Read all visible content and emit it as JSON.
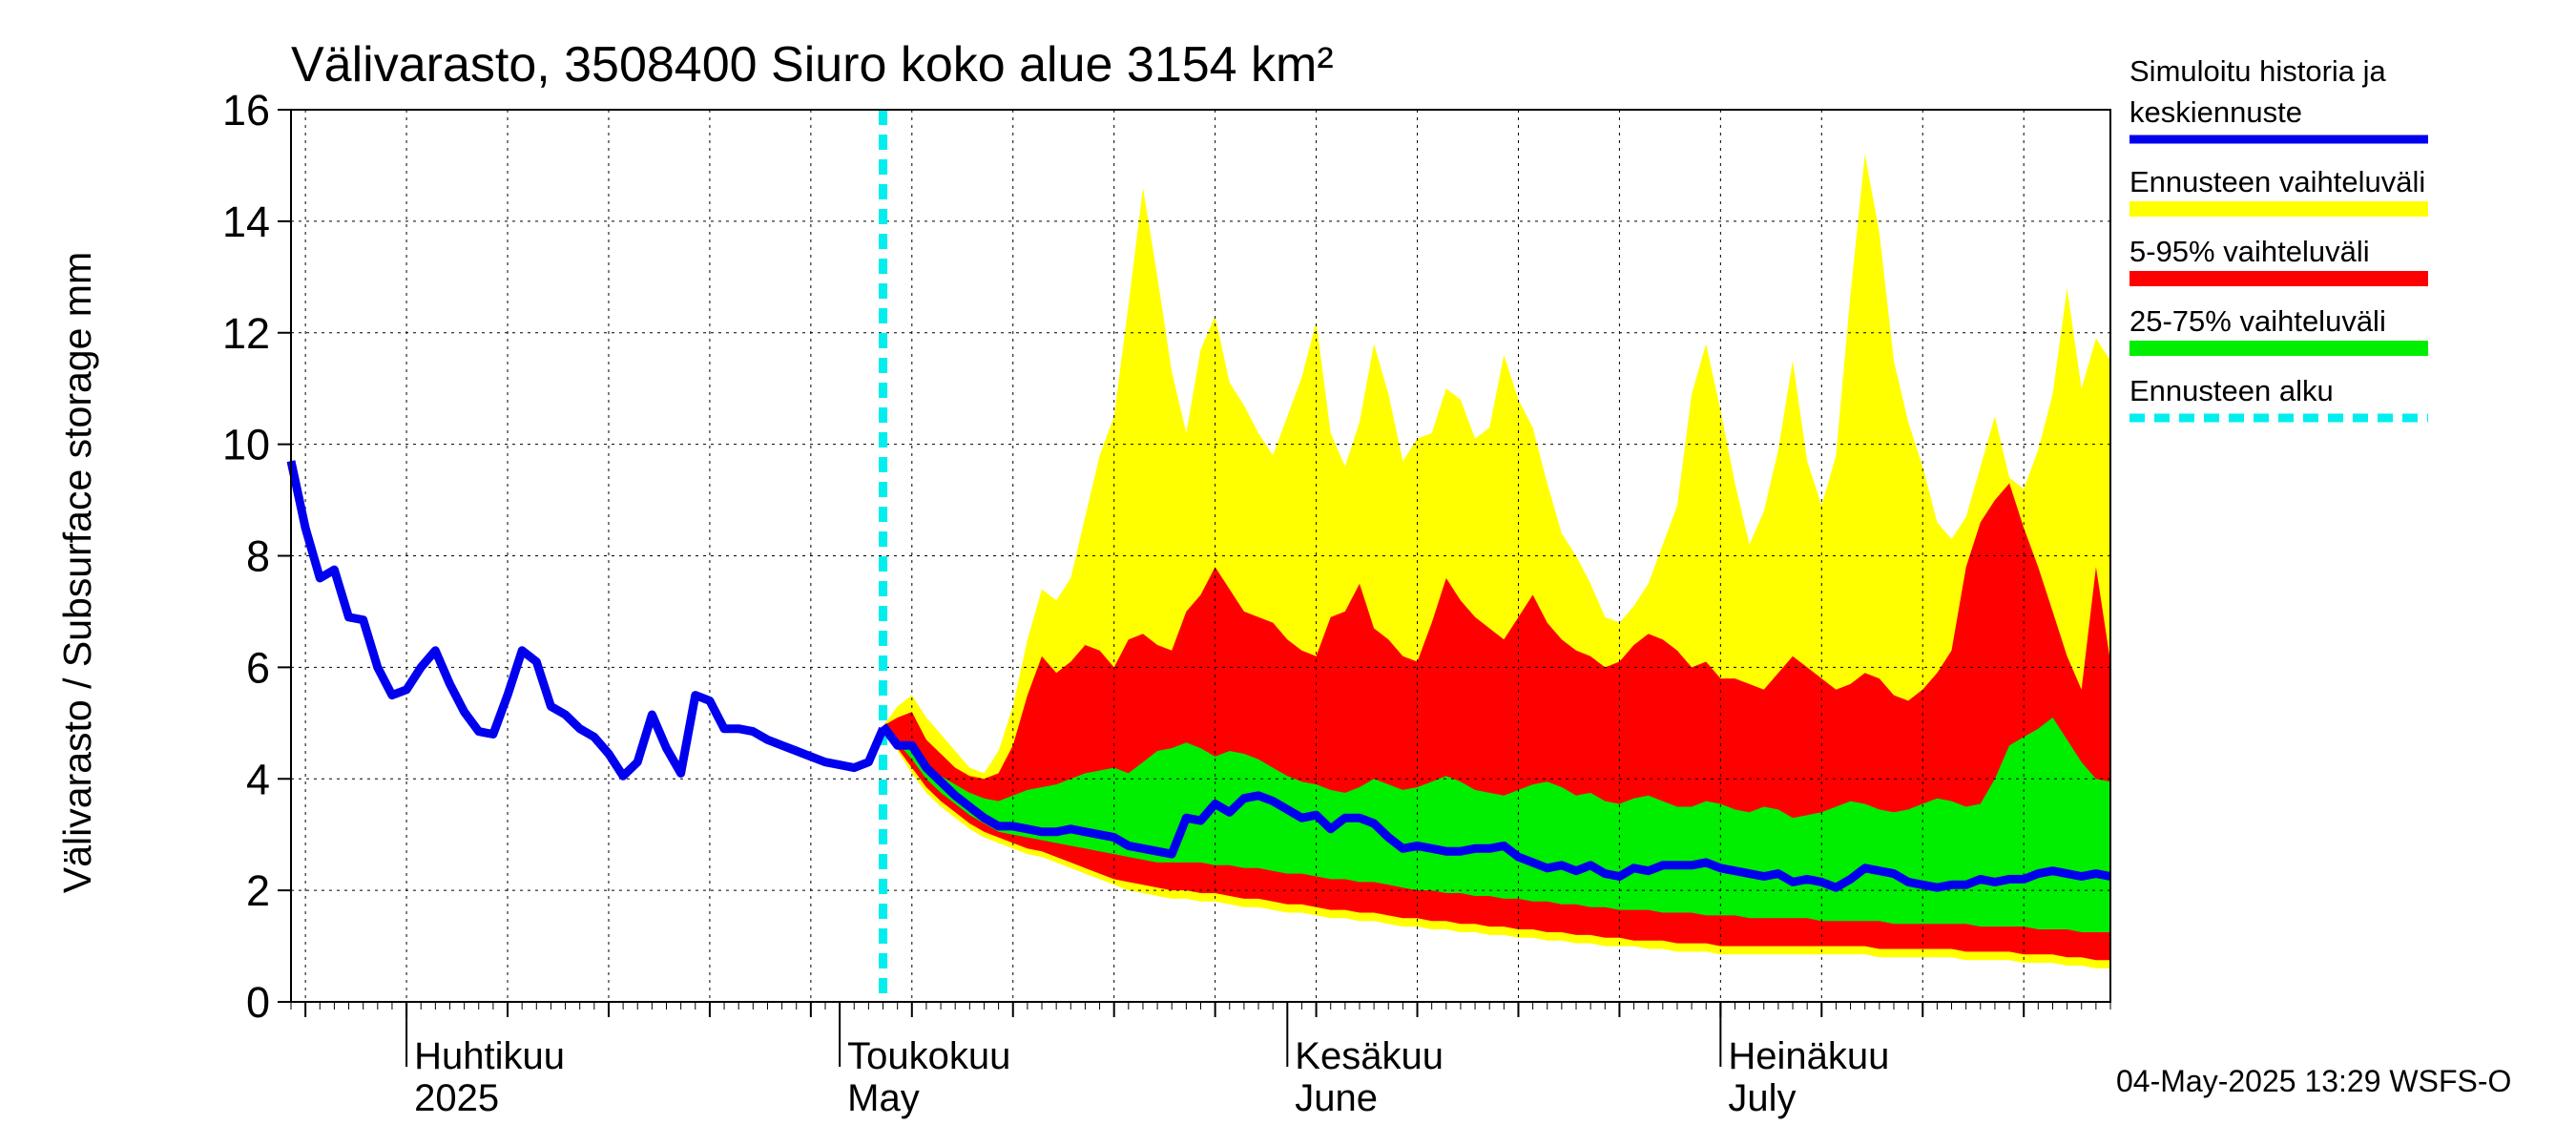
{
  "chart_data": {
    "type": "area",
    "title": "Välivarasto, 3508400 Siuro koko alue 3154 km²",
    "ylabel": "Välivarasto / Subsurface storage  mm",
    "ylim": [
      0,
      16
    ],
    "y_ticks": [
      0,
      2,
      4,
      6,
      8,
      10,
      12,
      14,
      16
    ],
    "x_range": [
      "2025-03-24",
      "2025-07-28"
    ],
    "month_labels": [
      {
        "fi": "Huhtikuu",
        "en": "2025",
        "date": "2025-04-01"
      },
      {
        "fi": "Toukokuu",
        "en": "May",
        "date": "2025-05-01"
      },
      {
        "fi": "Kesäkuu",
        "en": "June",
        "date": "2025-06-01"
      },
      {
        "fi": "Heinäkuu",
        "en": "July",
        "date": "2025-07-01"
      }
    ],
    "forecast_start": "2025-05-04",
    "grid": true,
    "legend_position": "right",
    "legend": [
      {
        "label_line1": "Simuloitu historia ja",
        "label_line2": "keskiennuste",
        "color": "#0000ee",
        "style": "line"
      },
      {
        "label_line1": "Ennusteen vaihteluväli",
        "label_line2": "",
        "color": "#ffff00",
        "style": "band"
      },
      {
        "label_line1": "5-95% vaihteluväli",
        "label_line2": "",
        "color": "#ff0000",
        "style": "band"
      },
      {
        "label_line1": "25-75% vaihteluväli",
        "label_line2": "",
        "color": "#00ee00",
        "style": "band"
      },
      {
        "label_line1": "Ennusteen alku",
        "label_line2": "",
        "color": "#00eeee",
        "style": "dashed"
      }
    ],
    "history": {
      "name": "Simuloitu historia ja keskiennuste",
      "x": [
        "2025-03-24",
        "2025-03-25",
        "2025-03-26",
        "2025-03-27",
        "2025-03-28",
        "2025-03-29",
        "2025-03-30",
        "2025-03-31",
        "2025-04-01",
        "2025-04-02",
        "2025-04-03",
        "2025-04-04",
        "2025-04-05",
        "2025-04-06",
        "2025-04-07",
        "2025-04-08",
        "2025-04-09",
        "2025-04-10",
        "2025-04-11",
        "2025-04-12",
        "2025-04-13",
        "2025-04-14",
        "2025-04-15",
        "2025-04-16",
        "2025-04-17",
        "2025-04-18",
        "2025-04-19",
        "2025-04-20",
        "2025-04-21",
        "2025-04-22",
        "2025-04-23",
        "2025-04-24",
        "2025-04-25",
        "2025-04-26",
        "2025-04-27",
        "2025-04-28",
        "2025-04-29",
        "2025-04-30",
        "2025-05-01",
        "2025-05-02",
        "2025-05-03",
        "2025-05-04"
      ],
      "y": [
        9.7,
        8.5,
        7.6,
        7.75,
        6.9,
        6.85,
        6.0,
        5.5,
        5.6,
        6.0,
        6.3,
        5.7,
        5.2,
        4.85,
        4.8,
        5.5,
        6.3,
        6.1,
        5.3,
        5.15,
        4.9,
        4.75,
        4.45,
        4.05,
        4.3,
        5.15,
        4.55,
        4.1,
        5.5,
        5.4,
        4.9,
        4.9,
        4.85,
        4.7,
        4.6,
        4.5,
        4.4,
        4.3,
        4.25,
        4.2,
        4.3,
        4.9
      ]
    },
    "forecast": {
      "x": [
        "2025-05-04",
        "2025-05-05",
        "2025-05-06",
        "2025-05-07",
        "2025-05-08",
        "2025-05-09",
        "2025-05-10",
        "2025-05-11",
        "2025-05-12",
        "2025-05-13",
        "2025-05-14",
        "2025-05-15",
        "2025-05-16",
        "2025-05-17",
        "2025-05-18",
        "2025-05-19",
        "2025-05-20",
        "2025-05-21",
        "2025-05-22",
        "2025-05-23",
        "2025-05-24",
        "2025-05-25",
        "2025-05-26",
        "2025-05-27",
        "2025-05-28",
        "2025-05-29",
        "2025-05-30",
        "2025-05-31",
        "2025-06-01",
        "2025-06-02",
        "2025-06-03",
        "2025-06-04",
        "2025-06-05",
        "2025-06-06",
        "2025-06-07",
        "2025-06-08",
        "2025-06-09",
        "2025-06-10",
        "2025-06-11",
        "2025-06-12",
        "2025-06-13",
        "2025-06-14",
        "2025-06-15",
        "2025-06-16",
        "2025-06-17",
        "2025-06-18",
        "2025-06-19",
        "2025-06-20",
        "2025-06-21",
        "2025-06-22",
        "2025-06-23",
        "2025-06-24",
        "2025-06-25",
        "2025-06-26",
        "2025-06-27",
        "2025-06-28",
        "2025-06-29",
        "2025-06-30",
        "2025-07-01",
        "2025-07-02",
        "2025-07-03",
        "2025-07-04",
        "2025-07-05",
        "2025-07-06",
        "2025-07-07",
        "2025-07-08",
        "2025-07-09",
        "2025-07-10",
        "2025-07-11",
        "2025-07-12",
        "2025-07-13",
        "2025-07-14",
        "2025-07-15",
        "2025-07-16",
        "2025-07-17",
        "2025-07-18",
        "2025-07-19",
        "2025-07-20",
        "2025-07-21",
        "2025-07-22",
        "2025-07-23",
        "2025-07-24",
        "2025-07-25",
        "2025-07-26",
        "2025-07-27",
        "2025-07-28"
      ],
      "mean": [
        4.95,
        4.6,
        4.6,
        4.2,
        3.95,
        3.7,
        3.5,
        3.3,
        3.15,
        3.15,
        3.1,
        3.05,
        3.05,
        3.1,
        3.05,
        3.0,
        2.95,
        2.8,
        2.75,
        2.7,
        2.65,
        3.3,
        3.25,
        3.55,
        3.4,
        3.65,
        3.7,
        3.6,
        3.45,
        3.3,
        3.35,
        3.1,
        3.3,
        3.3,
        3.2,
        2.95,
        2.75,
        2.8,
        2.75,
        2.7,
        2.7,
        2.75,
        2.75,
        2.8,
        2.6,
        2.5,
        2.4,
        2.45,
        2.35,
        2.45,
        2.3,
        2.25,
        2.4,
        2.35,
        2.45,
        2.45,
        2.45,
        2.5,
        2.4,
        2.35,
        2.3,
        2.25,
        2.3,
        2.15,
        2.2,
        2.15,
        2.05,
        2.2,
        2.4,
        2.35,
        2.3,
        2.15,
        2.1,
        2.05,
        2.1,
        2.1,
        2.2,
        2.15,
        2.2,
        2.2,
        2.3,
        2.35,
        2.3,
        2.25,
        2.3,
        2.25
      ],
      "p0": [
        4.95,
        4.5,
        4.1,
        3.75,
        3.5,
        3.3,
        3.1,
        2.95,
        2.85,
        2.75,
        2.65,
        2.6,
        2.5,
        2.4,
        2.3,
        2.2,
        2.1,
        2.0,
        1.95,
        1.9,
        1.85,
        1.85,
        1.8,
        1.8,
        1.75,
        1.7,
        1.7,
        1.65,
        1.6,
        1.6,
        1.55,
        1.5,
        1.5,
        1.45,
        1.45,
        1.4,
        1.35,
        1.35,
        1.3,
        1.3,
        1.25,
        1.25,
        1.2,
        1.2,
        1.15,
        1.15,
        1.1,
        1.1,
        1.05,
        1.05,
        1.0,
        1.0,
        1.0,
        0.95,
        0.95,
        0.9,
        0.9,
        0.9,
        0.85,
        0.85,
        0.85,
        0.85,
        0.85,
        0.85,
        0.85,
        0.85,
        0.85,
        0.85,
        0.85,
        0.8,
        0.8,
        0.8,
        0.8,
        0.8,
        0.8,
        0.75,
        0.75,
        0.75,
        0.75,
        0.7,
        0.7,
        0.7,
        0.65,
        0.65,
        0.6,
        0.6
      ],
      "p5": [
        4.95,
        4.55,
        4.2,
        3.85,
        3.6,
        3.4,
        3.2,
        3.05,
        2.95,
        2.85,
        2.75,
        2.7,
        2.6,
        2.5,
        2.4,
        2.3,
        2.2,
        2.15,
        2.1,
        2.05,
        2.0,
        2.0,
        1.95,
        1.95,
        1.9,
        1.85,
        1.85,
        1.8,
        1.75,
        1.75,
        1.7,
        1.65,
        1.65,
        1.6,
        1.6,
        1.55,
        1.5,
        1.5,
        1.45,
        1.45,
        1.4,
        1.4,
        1.35,
        1.35,
        1.3,
        1.3,
        1.25,
        1.25,
        1.2,
        1.2,
        1.15,
        1.15,
        1.1,
        1.1,
        1.1,
        1.05,
        1.05,
        1.05,
        1.0,
        1.0,
        1.0,
        1.0,
        1.0,
        1.0,
        1.0,
        1.0,
        1.0,
        1.0,
        1.0,
        0.95,
        0.95,
        0.95,
        0.95,
        0.95,
        0.95,
        0.9,
        0.9,
        0.9,
        0.9,
        0.85,
        0.85,
        0.85,
        0.8,
        0.8,
        0.75,
        0.75
      ],
      "p25": [
        4.95,
        4.65,
        4.35,
        4.0,
        3.75,
        3.55,
        3.35,
        3.2,
        3.05,
        3.0,
        2.95,
        2.9,
        2.85,
        2.8,
        2.75,
        2.7,
        2.65,
        2.6,
        2.55,
        2.5,
        2.5,
        2.5,
        2.5,
        2.45,
        2.45,
        2.4,
        2.4,
        2.35,
        2.3,
        2.3,
        2.25,
        2.2,
        2.2,
        2.15,
        2.15,
        2.1,
        2.05,
        2.0,
        2.0,
        1.95,
        1.95,
        1.9,
        1.9,
        1.85,
        1.85,
        1.8,
        1.8,
        1.75,
        1.75,
        1.7,
        1.7,
        1.65,
        1.65,
        1.65,
        1.6,
        1.6,
        1.6,
        1.55,
        1.55,
        1.55,
        1.5,
        1.5,
        1.5,
        1.5,
        1.5,
        1.45,
        1.45,
        1.45,
        1.45,
        1.45,
        1.4,
        1.4,
        1.4,
        1.4,
        1.4,
        1.4,
        1.35,
        1.35,
        1.35,
        1.35,
        1.3,
        1.3,
        1.3,
        1.25,
        1.25,
        1.25
      ],
      "p75": [
        4.95,
        4.7,
        4.5,
        4.25,
        4.05,
        3.9,
        3.75,
        3.65,
        3.6,
        3.7,
        3.8,
        3.85,
        3.9,
        4.0,
        4.1,
        4.15,
        4.2,
        4.1,
        4.3,
        4.5,
        4.55,
        4.65,
        4.55,
        4.4,
        4.5,
        4.45,
        4.35,
        4.2,
        4.05,
        3.95,
        3.9,
        3.8,
        3.75,
        3.85,
        4.0,
        3.9,
        3.8,
        3.85,
        3.95,
        4.05,
        3.95,
        3.8,
        3.75,
        3.7,
        3.8,
        3.9,
        3.95,
        3.85,
        3.7,
        3.75,
        3.6,
        3.55,
        3.65,
        3.7,
        3.6,
        3.5,
        3.5,
        3.6,
        3.55,
        3.45,
        3.4,
        3.5,
        3.45,
        3.3,
        3.35,
        3.4,
        3.5,
        3.6,
        3.55,
        3.45,
        3.4,
        3.45,
        3.55,
        3.65,
        3.6,
        3.5,
        3.55,
        4.0,
        4.6,
        4.75,
        4.9,
        5.1,
        4.7,
        4.3,
        4.0,
        3.95
      ],
      "p95": [
        4.95,
        5.1,
        5.2,
        4.7,
        4.45,
        4.2,
        4.05,
        4.0,
        4.1,
        4.6,
        5.5,
        6.2,
        5.9,
        6.1,
        6.4,
        6.3,
        6.0,
        6.5,
        6.6,
        6.4,
        6.3,
        7.0,
        7.3,
        7.8,
        7.4,
        7.0,
        6.9,
        6.8,
        6.5,
        6.3,
        6.2,
        6.9,
        7.0,
        7.5,
        6.7,
        6.5,
        6.2,
        6.1,
        6.8,
        7.6,
        7.2,
        6.9,
        6.7,
        6.5,
        6.9,
        7.3,
        6.8,
        6.5,
        6.3,
        6.2,
        6.0,
        6.1,
        6.4,
        6.6,
        6.5,
        6.3,
        6.0,
        6.1,
        5.8,
        5.8,
        5.7,
        5.6,
        5.9,
        6.2,
        6.0,
        5.8,
        5.6,
        5.7,
        5.9,
        5.8,
        5.5,
        5.4,
        5.6,
        5.9,
        6.3,
        7.8,
        8.6,
        9.0,
        9.3,
        8.5,
        7.8,
        7.0,
        6.2,
        5.6,
        7.8,
        6.1
      ],
      "pmax": [
        4.95,
        5.3,
        5.5,
        5.1,
        4.8,
        4.5,
        4.2,
        4.1,
        4.5,
        5.3,
        6.5,
        7.4,
        7.2,
        7.6,
        8.7,
        9.8,
        10.5,
        12.5,
        14.6,
        13.0,
        11.3,
        10.2,
        11.7,
        12.3,
        11.1,
        10.7,
        10.2,
        9.8,
        10.5,
        11.2,
        12.2,
        10.2,
        9.6,
        10.4,
        11.8,
        10.9,
        9.7,
        10.1,
        10.2,
        11.0,
        10.8,
        10.1,
        10.3,
        11.6,
        10.8,
        10.3,
        9.3,
        8.4,
        8.0,
        7.5,
        6.9,
        6.8,
        7.1,
        7.5,
        8.2,
        8.9,
        10.9,
        11.8,
        10.6,
        9.3,
        8.2,
        8.8,
        9.9,
        11.5,
        9.7,
        8.9,
        9.8,
        12.7,
        15.2,
        13.8,
        11.5,
        10.4,
        9.6,
        8.6,
        8.3,
        8.7,
        9.6,
        10.5,
        9.4,
        9.2,
        9.9,
        10.9,
        12.8,
        11.0,
        11.9,
        11.5
      ]
    },
    "footer": "04-May-2025 13:29 WSFS-O"
  }
}
